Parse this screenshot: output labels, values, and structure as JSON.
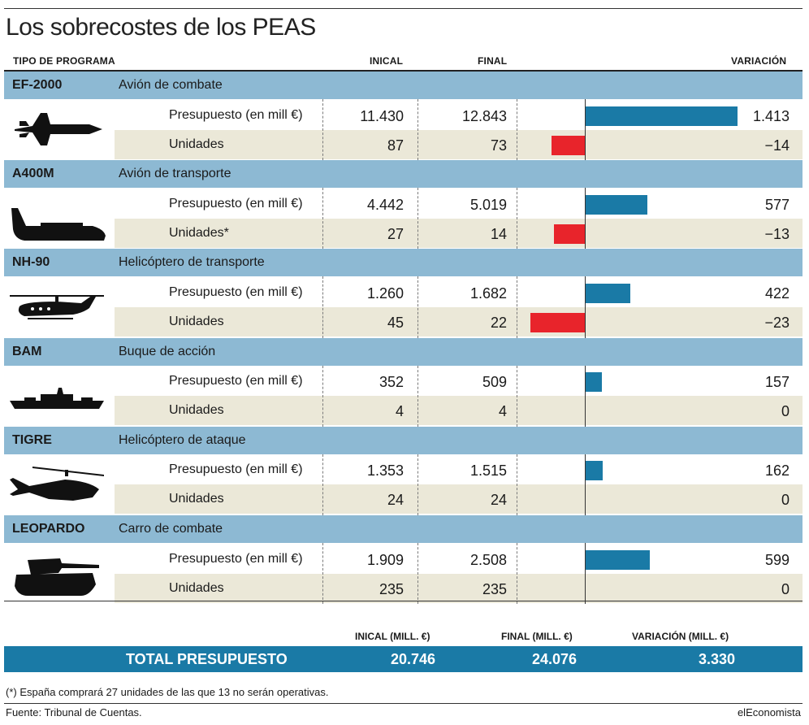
{
  "title": "Los sobrecostes de los PEAS",
  "headers": {
    "tipo": "TIPO DE PROGRAMA",
    "inicial": "INICAL",
    "final": "FINAL",
    "variacion": "VARIACIÓN"
  },
  "colors": {
    "header_band": "#8db9d3",
    "row_beige": "#ebe8d8",
    "bar_positive": "#1a7aa6",
    "bar_negative": "#e8242b",
    "total_band": "#1a7aa6"
  },
  "chart_data": {
    "type": "bar",
    "title": "Los sobrecostes de los PEAS",
    "categories": [
      "EF-2000",
      "A400M",
      "NH-90",
      "BAM",
      "TIGRE",
      "LEOPARDO"
    ],
    "series": [
      {
        "name": "Presupuesto (en mill €)",
        "values": [
          1413,
          577,
          422,
          157,
          162,
          599
        ]
      },
      {
        "name": "Unidades",
        "values": [
          -14,
          -13,
          -23,
          0,
          0,
          0
        ]
      }
    ],
    "programs": [
      {
        "code": "EF-2000",
        "desc": "Avión de combate",
        "icon": "fighter-jet-icon",
        "presupuesto": {
          "label": "Presupuesto (en mill €)",
          "inicial": "11.430",
          "final": "12.843",
          "variacion": "1.413",
          "value": 1413
        },
        "unidades": {
          "label": "Unidades",
          "inicial": "87",
          "final": "73",
          "variacion": "−14",
          "value": -14
        }
      },
      {
        "code": "A400M",
        "desc": "Avión de transporte",
        "icon": "transport-plane-icon",
        "presupuesto": {
          "label": "Presupuesto (en mill €)",
          "inicial": "4.442",
          "final": "5.019",
          "variacion": "577",
          "value": 577
        },
        "unidades": {
          "label": "Unidades*",
          "inicial": "27",
          "final": "14",
          "variacion": "−13",
          "value": -13
        }
      },
      {
        "code": "NH-90",
        "desc": "Helicóptero de transporte",
        "icon": "transport-helicopter-icon",
        "presupuesto": {
          "label": "Presupuesto (en mill €)",
          "inicial": "1.260",
          "final": "1.682",
          "variacion": "422",
          "value": 422
        },
        "unidades": {
          "label": "Unidades",
          "inicial": "45",
          "final": "22",
          "variacion": "−23",
          "value": -23
        }
      },
      {
        "code": "BAM",
        "desc": "Buque de acción",
        "icon": "ship-icon",
        "presupuesto": {
          "label": "Presupuesto (en mill €)",
          "inicial": "352",
          "final": "509",
          "variacion": "157",
          "value": 157
        },
        "unidades": {
          "label": "Unidades",
          "inicial": "4",
          "final": "4",
          "variacion": "0",
          "value": 0
        }
      },
      {
        "code": "TIGRE",
        "desc": "Helicóptero de ataque",
        "icon": "attack-helicopter-icon",
        "presupuesto": {
          "label": "Presupuesto (en mill €)",
          "inicial": "1.353",
          "final": "1.515",
          "variacion": "162",
          "value": 162
        },
        "unidades": {
          "label": "Unidades",
          "inicial": "24",
          "final": "24",
          "variacion": "0",
          "value": 0
        }
      },
      {
        "code": "LEOPARDO",
        "desc": "Carro de combate",
        "icon": "tank-icon",
        "presupuesto": {
          "label": "Presupuesto (en mill €)",
          "inicial": "1.909",
          "final": "2.508",
          "variacion": "599",
          "value": 599
        },
        "unidades": {
          "label": "Unidades",
          "inicial": "235",
          "final": "235",
          "variacion": "0",
          "value": 0
        }
      }
    ]
  },
  "totals": {
    "h_inicial": "INICAL (MILL. €)",
    "h_final": "FINAL (MILL. €)",
    "h_variacion": "VARIACIÓN (MILL. €)",
    "label": "TOTAL PRESUPUESTO",
    "inicial": "20.746",
    "final": "24.076",
    "variacion": "3.330"
  },
  "note": "(*) España comprará 27 unidades de las que 13 no serán operativas.",
  "source": "Fuente: Tribunal de Cuentas.",
  "brand": "elEconomista"
}
